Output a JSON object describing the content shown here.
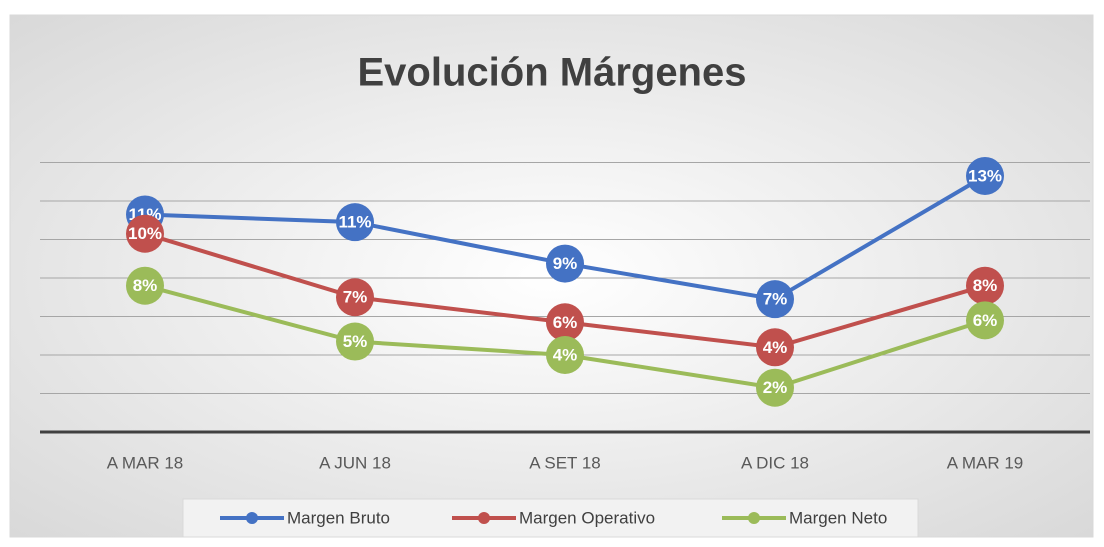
{
  "chart_data": {
    "type": "line",
    "title": "Evolución Márgenes",
    "categories": [
      "A MAR 18",
      "A JUN 18",
      "A SET 18",
      "A DIC 18",
      "A MAR 19"
    ],
    "series": [
      {
        "name": "Margen Bruto",
        "color": "#4472c4",
        "values": [
          11.3,
          10.9,
          8.75,
          6.9,
          13.3
        ],
        "value_labels": [
          "11%",
          "11%",
          "9%",
          "7%",
          "13%"
        ]
      },
      {
        "name": "Margen Operativo",
        "color": "#c0504d",
        "values": [
          10.3,
          7.0,
          5.7,
          4.4,
          7.6
        ],
        "value_labels": [
          "10%",
          "7%",
          "6%",
          "4%",
          "8%"
        ]
      },
      {
        "name": "Margen Neto",
        "color": "#9bbb59",
        "values": [
          7.6,
          4.7,
          4.0,
          2.3,
          5.8
        ],
        "value_labels": [
          "8%",
          "5%",
          "4%",
          "2%",
          "6%"
        ]
      }
    ],
    "ylim": [
      0,
      16
    ],
    "yticks": [
      0,
      2,
      4,
      6,
      8,
      10,
      12,
      14
    ],
    "ytick_labels": false,
    "grid": true,
    "legend": "bottom"
  }
}
